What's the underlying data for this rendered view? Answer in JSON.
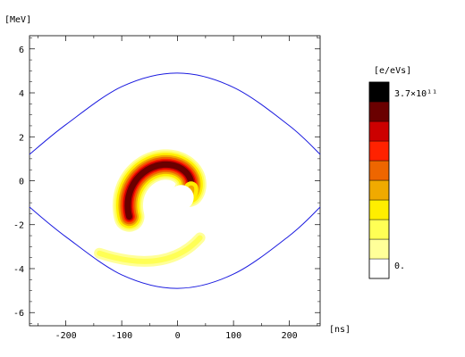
{
  "chart_data": {
    "type": "heatmap",
    "xlabel": "[ns]",
    "ylabel": "[MeV]",
    "xlim": [
      -265,
      255
    ],
    "ylim": [
      -6.6,
      6.6
    ],
    "x_ticks": [
      -200,
      -100,
      0,
      100,
      200
    ],
    "x_tick_labels": [
      "-200",
      "-100",
      "0",
      "100",
      "200"
    ],
    "y_ticks": [
      -6,
      -4,
      -2,
      0,
      2,
      4,
      6
    ],
    "y_tick_labels": [
      "-6",
      "-4",
      "-2",
      "0",
      "2",
      "4",
      "6"
    ],
    "separatrix": {
      "color": "#1a1adf",
      "peak_energy_mev": 4.9,
      "x_start": -265,
      "x_end": 255,
      "upper": [
        [
          -265,
          1.2
        ],
        [
          -200,
          2.55
        ],
        [
          -100,
          4.28
        ],
        [
          0,
          4.9
        ],
        [
          100,
          4.25
        ],
        [
          200,
          2.5
        ],
        [
          255,
          1.2
        ]
      ],
      "lower": [
        [
          -265,
          -1.2
        ],
        [
          -200,
          -2.55
        ],
        [
          -100,
          -4.28
        ],
        [
          0,
          -4.9
        ],
        [
          100,
          -4.25
        ],
        [
          200,
          -2.5
        ],
        [
          255,
          -1.2
        ]
      ]
    },
    "colorbar": {
      "unit_label": "[e/eVs]",
      "max_label": "3.7×10¹¹",
      "min_label": "0.",
      "colors": [
        "#ffffff",
        "#ffff99",
        "#ffff55",
        "#ffee00",
        "#f0aa00",
        "#ee6600",
        "#ff2200",
        "#cc0000",
        "#6a0000",
        "#000000"
      ]
    },
    "distribution": {
      "description_levels": 9,
      "spiral_center": [
        0,
        -0.6
      ]
    }
  }
}
